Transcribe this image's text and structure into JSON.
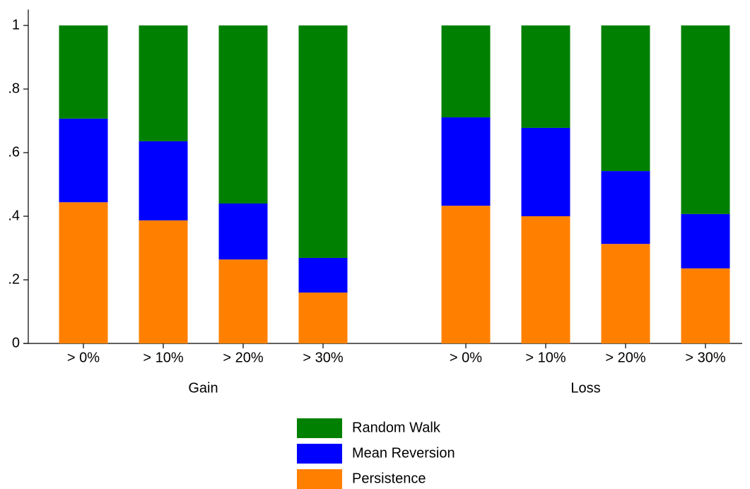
{
  "chart_data": {
    "type": "stacked_bar",
    "groups": [
      {
        "name": "Gain",
        "categories": [
          "> 0%",
          "> 10%",
          "> 20%",
          "> 30%"
        ]
      },
      {
        "name": "Loss",
        "categories": [
          "> 0%",
          "> 10%",
          "> 20%",
          "> 30%"
        ]
      }
    ],
    "series": [
      {
        "name": "Persistence",
        "color": "#ff8000",
        "values": [
          0.444,
          0.387,
          0.264,
          0.16,
          0.433,
          0.4,
          0.313,
          0.236
        ]
      },
      {
        "name": "Mean Reversion",
        "color": "#0000ff",
        "values": [
          0.263,
          0.249,
          0.176,
          0.109,
          0.278,
          0.278,
          0.229,
          0.171
        ]
      },
      {
        "name": "Random Walk",
        "color": "#008000",
        "values": [
          0.293,
          0.364,
          0.56,
          0.731,
          0.289,
          0.322,
          0.458,
          0.593
        ]
      }
    ],
    "ylim": [
      0,
      1.05
    ],
    "yticks": [
      0,
      {
        "value": 0.2,
        "label": ".2"
      },
      {
        "value": 0.4,
        "label": ".4"
      },
      {
        "value": 0.6,
        "label": ".6"
      },
      {
        "value": 0.8,
        "label": ".8"
      },
      1
    ],
    "grid": false
  }
}
